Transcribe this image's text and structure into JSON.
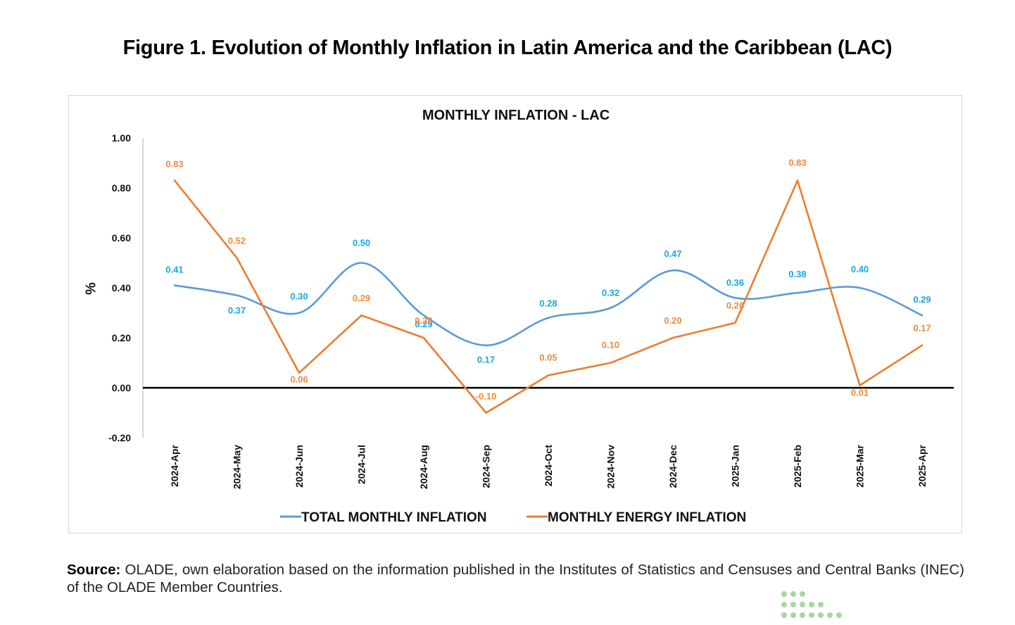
{
  "figure": {
    "title": "Figure 1. Evolution of Monthly Inflation in Latin America and the Caribbean (LAC)"
  },
  "chart_data": {
    "type": "line",
    "title": "MONTHLY INFLATION  - LAC",
    "xlabel": "",
    "ylabel": "%",
    "ylim": [
      -0.2,
      1.0
    ],
    "yticks": [
      "1.00",
      "0.80",
      "0.60",
      "0.40",
      "0.20",
      "0.00",
      "-0.20"
    ],
    "categories": [
      "2024-Apr",
      "2024-May",
      "2024-Jun",
      "2024-Jul",
      "2024-Aug",
      "2024-Sep",
      "2024-Oct",
      "2024-Nov",
      "2024-Dec",
      "2025-Jan",
      "2025-Feb",
      "2025-Mar",
      "2025-Apr"
    ],
    "grid": false,
    "legend_position": "bottom",
    "series": [
      {
        "name": "TOTAL MONTHLY INFLATION",
        "color": "#5b9bd5",
        "label_color": "#1aa6e0",
        "smooth": true,
        "values": [
          0.41,
          0.37,
          0.3,
          0.5,
          0.29,
          0.17,
          0.28,
          0.32,
          0.47,
          0.36,
          0.38,
          0.4,
          0.29
        ],
        "labels": [
          "0.41",
          "0.37",
          "0.30",
          "0.50",
          "0.29",
          "0.17",
          "0.28",
          "0.32",
          "0.47",
          "0.36",
          "0.38",
          "0.40",
          "0.29"
        ]
      },
      {
        "name": "MONTHLY ENERGY INFLATION",
        "color": "#ed7d31",
        "label_color": "#ef8a3b",
        "smooth": false,
        "values": [
          0.83,
          0.52,
          0.06,
          0.29,
          0.2,
          -0.1,
          0.05,
          0.1,
          0.2,
          0.26,
          0.83,
          0.01,
          0.17
        ],
        "labels": [
          "0.83",
          "0.52",
          "0.06",
          "0.29",
          "0.20",
          "-0.10",
          "0.05",
          "0.10",
          "0.20",
          "0.26",
          "0.83",
          "0.01",
          "0.17"
        ]
      }
    ]
  },
  "source": {
    "label": "Source:",
    "text": " OLADE, own elaboration based on the information published in the Institutes of Statistics and Censuses and Central Banks (INEC) of the OLADE Member Countries."
  },
  "logo": {
    "icon": "dots-grid-icon",
    "color": "#a8d5a2"
  }
}
